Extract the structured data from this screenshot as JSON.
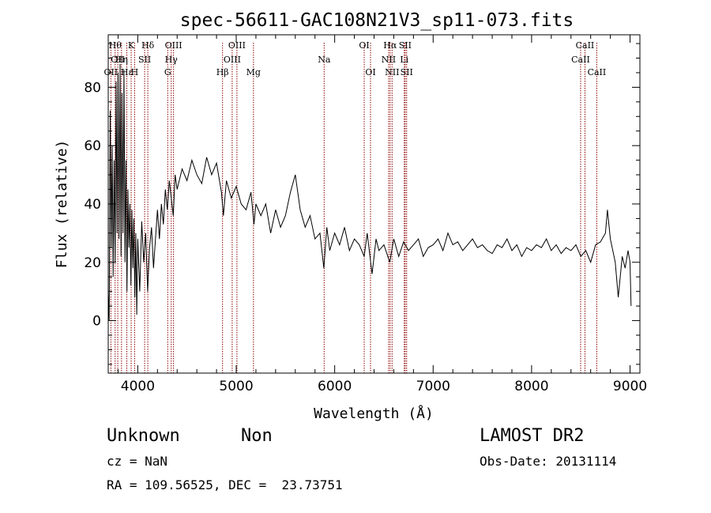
{
  "chart_data": {
    "type": "line",
    "title": "spec-56611-GAC108N21V3_sp11-073.fits",
    "xlabel": "Wavelength (Å)",
    "ylabel": "Flux (relative)",
    "xlim": [
      3700,
      9100
    ],
    "ylim": [
      -18,
      98
    ],
    "xticks": [
      4000,
      5000,
      6000,
      7000,
      8000,
      9000
    ],
    "xtick_labels": [
      "4000",
      "5000",
      "6000",
      "7000",
      "8000",
      "9000"
    ],
    "yticks": [
      0,
      20,
      40,
      60,
      80
    ],
    "ytick_labels": [
      "0",
      "20",
      "40",
      "60",
      "80"
    ],
    "grid": false,
    "line_color": "#000000",
    "marker_color": "#8b0000",
    "series": [
      {
        "values": [
          [
            3700,
            10
          ],
          [
            3710,
            0
          ],
          [
            3720,
            72
          ],
          [
            3730,
            25
          ],
          [
            3740,
            60
          ],
          [
            3750,
            15
          ],
          [
            3760,
            55
          ],
          [
            3770,
            20
          ],
          [
            3780,
            82
          ],
          [
            3790,
            30
          ],
          [
            3800,
            85
          ],
          [
            3810,
            28
          ],
          [
            3820,
            88
          ],
          [
            3830,
            22
          ],
          [
            3840,
            78
          ],
          [
            3850,
            30
          ],
          [
            3860,
            86
          ],
          [
            3870,
            20
          ],
          [
            3880,
            55
          ],
          [
            3890,
            10
          ],
          [
            3900,
            45
          ],
          [
            3910,
            25
          ],
          [
            3920,
            40
          ],
          [
            3930,
            12
          ],
          [
            3940,
            38
          ],
          [
            3950,
            18
          ],
          [
            3960,
            35
          ],
          [
            3970,
            8
          ],
          [
            3980,
            30
          ],
          [
            3990,
            2
          ],
          [
            4000,
            28
          ],
          [
            4020,
            10
          ],
          [
            4040,
            34
          ],
          [
            4060,
            20
          ],
          [
            4080,
            30
          ],
          [
            4100,
            10
          ],
          [
            4120,
            25
          ],
          [
            4140,
            32
          ],
          [
            4160,
            18
          ],
          [
            4180,
            28
          ],
          [
            4200,
            38
          ],
          [
            4220,
            28
          ],
          [
            4240,
            40
          ],
          [
            4260,
            33
          ],
          [
            4280,
            45
          ],
          [
            4300,
            38
          ],
          [
            4320,
            48
          ],
          [
            4340,
            42
          ],
          [
            4360,
            36
          ],
          [
            4380,
            50
          ],
          [
            4400,
            45
          ],
          [
            4450,
            52
          ],
          [
            4500,
            48
          ],
          [
            4550,
            55
          ],
          [
            4600,
            50
          ],
          [
            4650,
            47
          ],
          [
            4700,
            56
          ],
          [
            4750,
            50
          ],
          [
            4800,
            54
          ],
          [
            4850,
            44
          ],
          [
            4870,
            36
          ],
          [
            4900,
            48
          ],
          [
            4950,
            42
          ],
          [
            5000,
            46
          ],
          [
            5050,
            40
          ],
          [
            5100,
            38
          ],
          [
            5150,
            44
          ],
          [
            5180,
            33
          ],
          [
            5200,
            40
          ],
          [
            5250,
            36
          ],
          [
            5300,
            40
          ],
          [
            5350,
            30
          ],
          [
            5400,
            38
          ],
          [
            5450,
            32
          ],
          [
            5500,
            36
          ],
          [
            5550,
            44
          ],
          [
            5600,
            50
          ],
          [
            5650,
            38
          ],
          [
            5700,
            32
          ],
          [
            5750,
            36
          ],
          [
            5800,
            28
          ],
          [
            5850,
            30
          ],
          [
            5890,
            18
          ],
          [
            5920,
            32
          ],
          [
            5950,
            24
          ],
          [
            6000,
            30
          ],
          [
            6050,
            26
          ],
          [
            6100,
            32
          ],
          [
            6150,
            24
          ],
          [
            6200,
            28
          ],
          [
            6250,
            26
          ],
          [
            6300,
            22
          ],
          [
            6330,
            30
          ],
          [
            6380,
            16
          ],
          [
            6420,
            28
          ],
          [
            6450,
            24
          ],
          [
            6500,
            26
          ],
          [
            6560,
            20
          ],
          [
            6600,
            28
          ],
          [
            6650,
            22
          ],
          [
            6700,
            27
          ],
          [
            6750,
            24
          ],
          [
            6800,
            26
          ],
          [
            6850,
            28
          ],
          [
            6900,
            22
          ],
          [
            6950,
            25
          ],
          [
            7000,
            26
          ],
          [
            7050,
            28
          ],
          [
            7100,
            24
          ],
          [
            7150,
            30
          ],
          [
            7200,
            26
          ],
          [
            7250,
            27
          ],
          [
            7300,
            24
          ],
          [
            7350,
            26
          ],
          [
            7400,
            28
          ],
          [
            7450,
            25
          ],
          [
            7500,
            26
          ],
          [
            7550,
            24
          ],
          [
            7600,
            23
          ],
          [
            7650,
            26
          ],
          [
            7700,
            25
          ],
          [
            7750,
            28
          ],
          [
            7800,
            24
          ],
          [
            7850,
            26
          ],
          [
            7900,
            22
          ],
          [
            7950,
            25
          ],
          [
            8000,
            24
          ],
          [
            8050,
            26
          ],
          [
            8100,
            25
          ],
          [
            8150,
            28
          ],
          [
            8200,
            24
          ],
          [
            8250,
            26
          ],
          [
            8300,
            23
          ],
          [
            8350,
            25
          ],
          [
            8400,
            24
          ],
          [
            8450,
            26
          ],
          [
            8500,
            22
          ],
          [
            8550,
            24
          ],
          [
            8600,
            20
          ],
          [
            8650,
            26
          ],
          [
            8700,
            27
          ],
          [
            8750,
            30
          ],
          [
            8770,
            38
          ],
          [
            8800,
            28
          ],
          [
            8850,
            20
          ],
          [
            8880,
            8
          ],
          [
            8920,
            22
          ],
          [
            8950,
            18
          ],
          [
            8980,
            24
          ],
          [
            9000,
            20
          ],
          [
            9010,
            5
          ]
        ]
      }
    ],
    "lines": [
      {
        "wavelength": 3727,
        "label": "OII",
        "row": 2
      },
      {
        "wavelength": 3770,
        "label": "Hθ",
        "row": 0
      },
      {
        "wavelength": 3797,
        "label": "OII",
        "row": 1
      },
      {
        "wavelength": 3835,
        "label": "Hη",
        "row": 1
      },
      {
        "wavelength": 3889,
        "label": "Hε",
        "row": 2
      },
      {
        "wavelength": 3933,
        "label": "K",
        "row": 0
      },
      {
        "wavelength": 3968,
        "label": "H",
        "row": 2
      },
      {
        "wavelength": 4070,
        "label": "SII",
        "row": 1
      },
      {
        "wavelength": 4102,
        "label": "Hδ",
        "row": 0
      },
      {
        "wavelength": 4304,
        "label": "G",
        "row": 2
      },
      {
        "wavelength": 4340,
        "label": "Hγ",
        "row": 1
      },
      {
        "wavelength": 4363,
        "label": "OIII",
        "row": 0
      },
      {
        "wavelength": 4861,
        "label": "Hβ",
        "row": 2
      },
      {
        "wavelength": 4959,
        "label": "OIII",
        "row": 1
      },
      {
        "wavelength": 5007,
        "label": "OIII",
        "row": 0
      },
      {
        "wavelength": 5175,
        "label": "Mg",
        "row": 2
      },
      {
        "wavelength": 5893,
        "label": "Na",
        "row": 1
      },
      {
        "wavelength": 6300,
        "label": "OI",
        "row": 0
      },
      {
        "wavelength": 6364,
        "label": "OI",
        "row": 2
      },
      {
        "wavelength": 6548,
        "label": "NII",
        "row": 1
      },
      {
        "wavelength": 6563,
        "label": "Hα",
        "row": 0
      },
      {
        "wavelength": 6583,
        "label": "NII",
        "row": 2
      },
      {
        "wavelength": 6707,
        "label": "Li",
        "row": 1
      },
      {
        "wavelength": 6716,
        "label": "SII",
        "row": 0
      },
      {
        "wavelength": 6731,
        "label": "SII",
        "row": 2
      },
      {
        "wavelength": 8498,
        "label": "CaII",
        "row": 1
      },
      {
        "wavelength": 8542,
        "label": "CaII",
        "row": 0
      },
      {
        "wavelength": 8662,
        "label": "CaII",
        "row": 2
      }
    ]
  },
  "info": {
    "class": "Unknown",
    "subclass": "Non",
    "survey": "LAMOST DR2",
    "cz": "cz = NaN",
    "obs_date": "Obs-Date: 20131114",
    "coords": "RA = 109.56525, DEC =  23.73751"
  }
}
